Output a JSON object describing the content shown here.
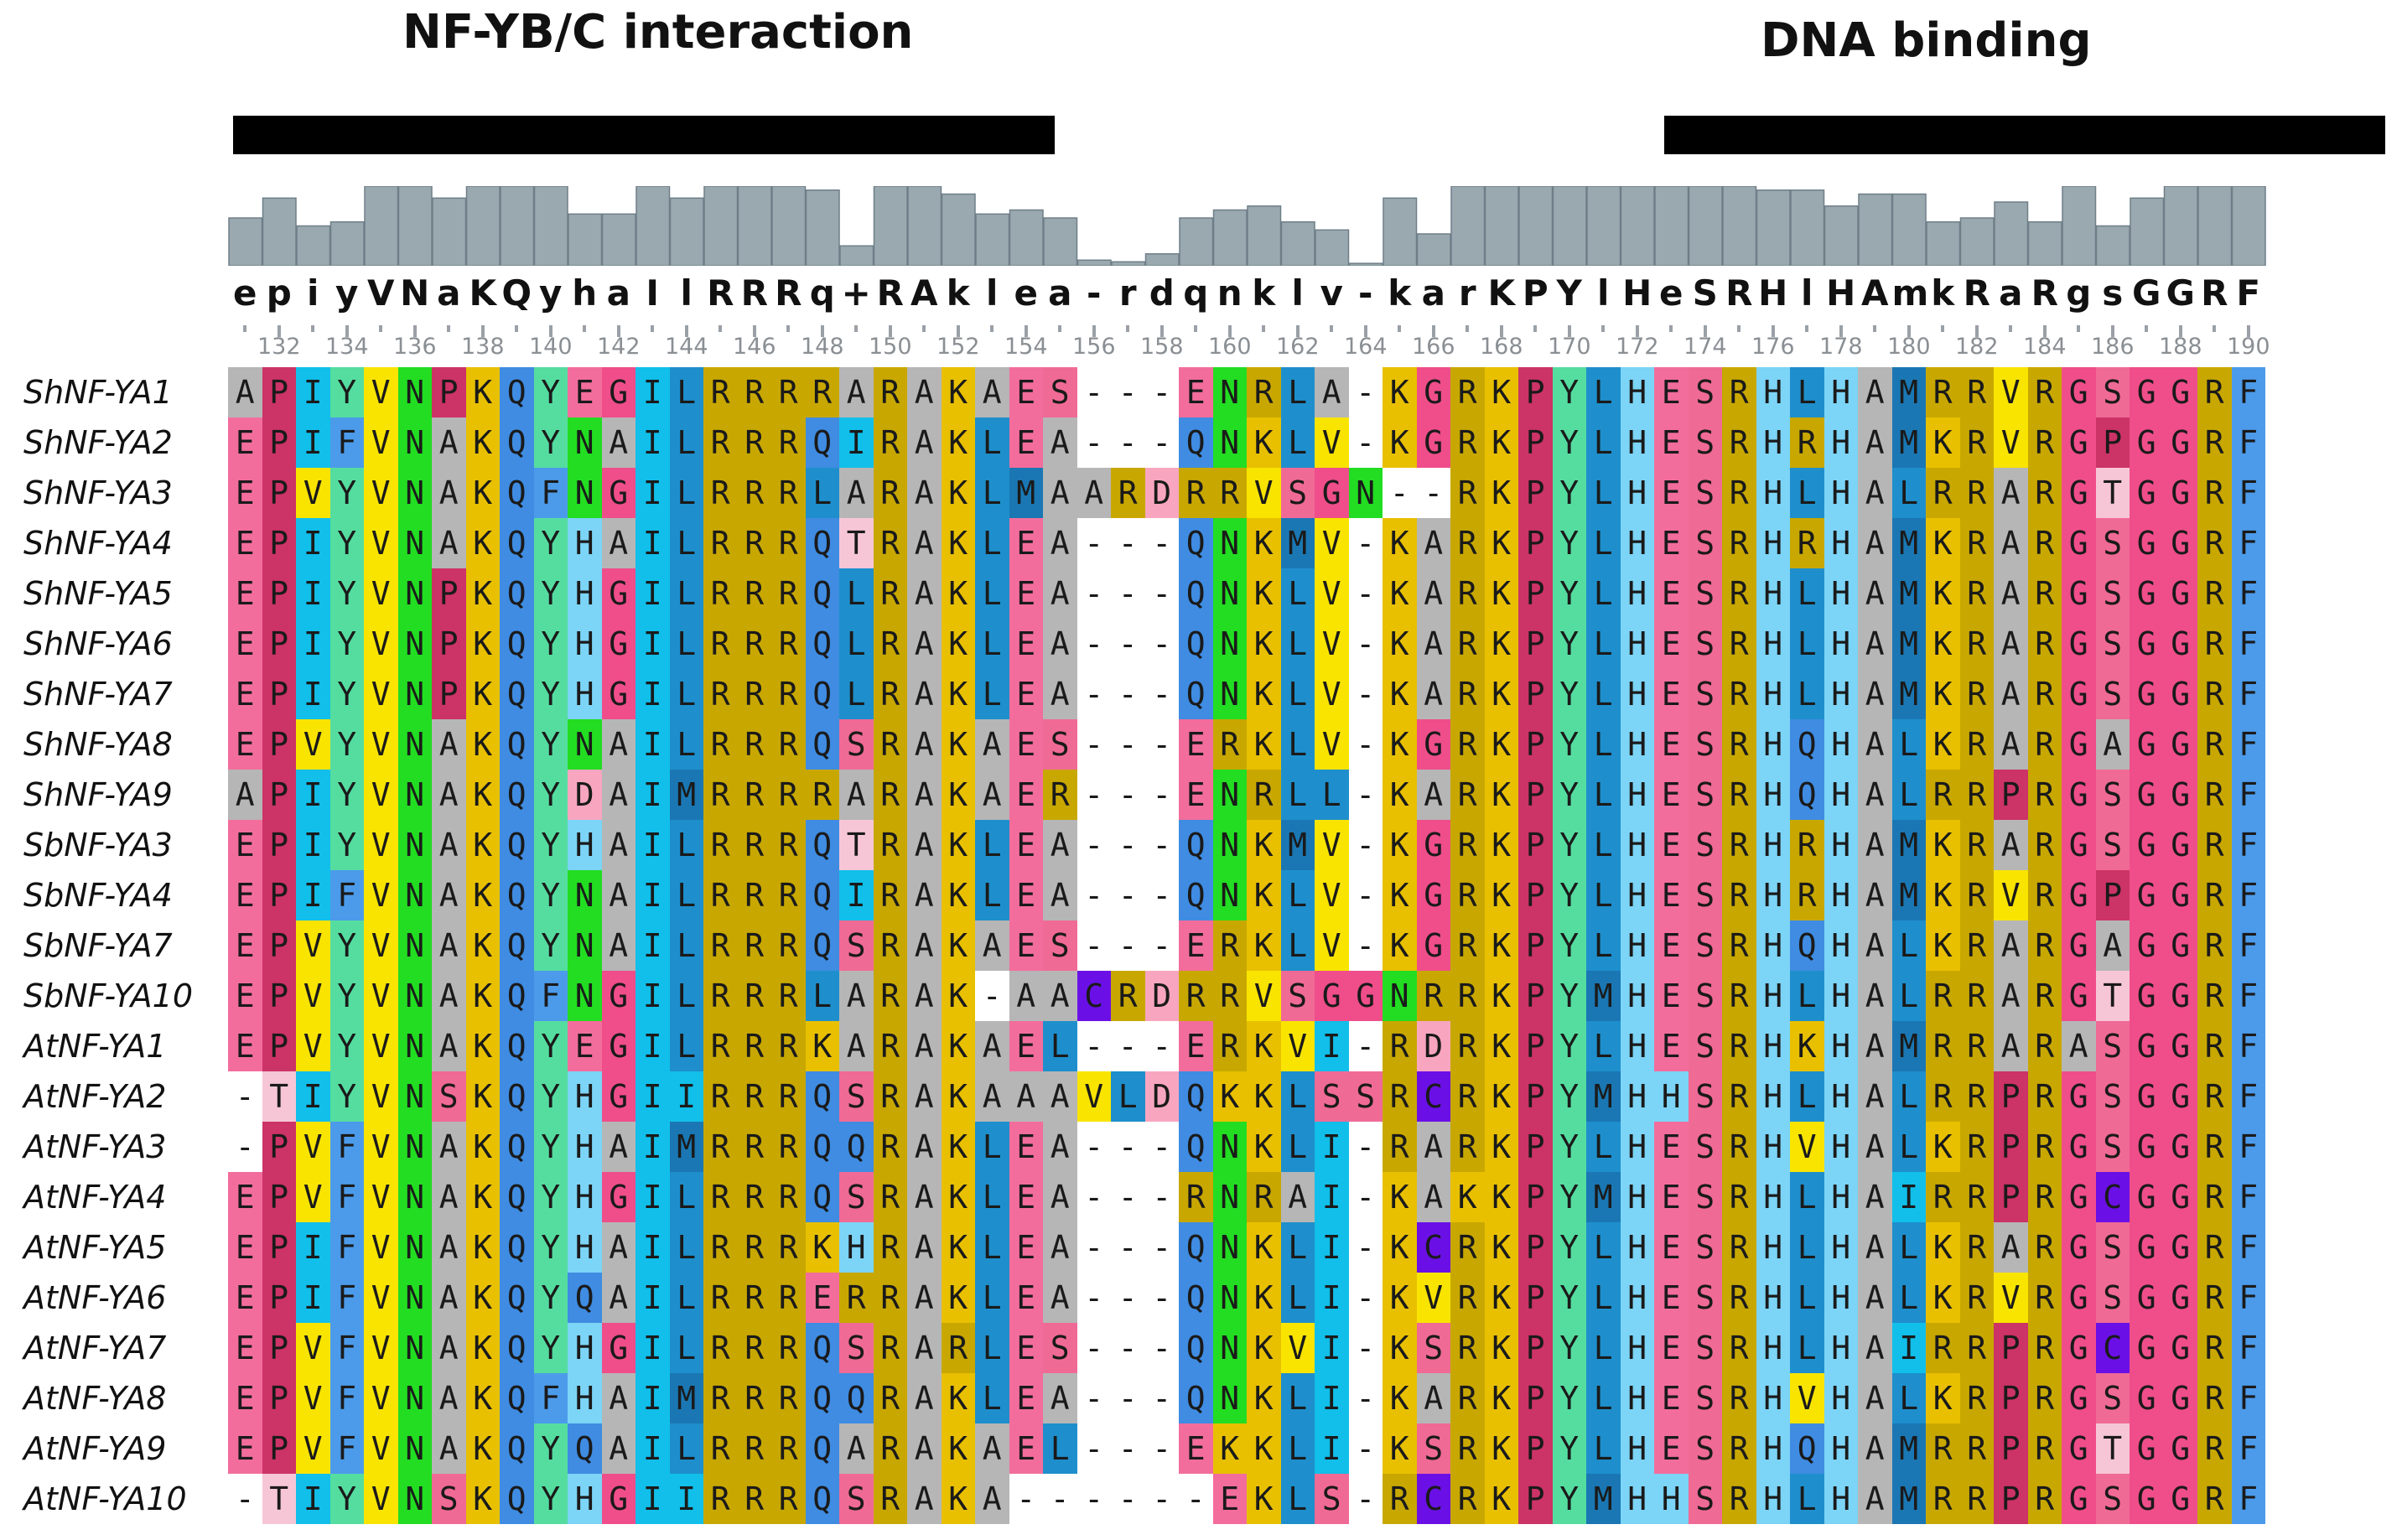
{
  "domains": {
    "nfy_label": "NF-YB/C interaction",
    "dna_label": "DNA binding"
  },
  "consensus": "epiyVNaKQyhaIlRRRq+RAklea-rdqnklv-karKPYlHeSRHlHAmkRaRgsGGRF",
  "conservation_levels": [
    0.6,
    0.85,
    0.5,
    0.55,
    1.0,
    1.0,
    0.85,
    1.0,
    1.0,
    1.0,
    0.65,
    0.65,
    1.0,
    0.85,
    1.0,
    1.0,
    1.0,
    0.95,
    0.25,
    1.0,
    1.0,
    0.9,
    0.65,
    0.7,
    0.6,
    0.07,
    0.05,
    0.15,
    0.6,
    0.7,
    0.75,
    0.55,
    0.45,
    0.03,
    0.85,
    0.4,
    1.0,
    1.0,
    1.0,
    1.0,
    1.0,
    1.0,
    1.0,
    1.0,
    1.0,
    0.95,
    0.95,
    0.75,
    0.9,
    0.9,
    0.55,
    0.6,
    0.8,
    0.55,
    1.0,
    0.5,
    0.85,
    1.0,
    1.0,
    1.0
  ],
  "ruler": {
    "labels": [
      "132",
      "134",
      "136",
      "138",
      "140",
      "142",
      "144",
      "146",
      "148",
      "150",
      "152",
      "154",
      "156",
      "158",
      "160",
      "162",
      "164",
      "166",
      "168",
      "170",
      "172",
      "174",
      "176",
      "178",
      "180",
      "182",
      "184",
      "186",
      "188",
      "190"
    ]
  },
  "sequences": [
    {
      "name": "ShNF-YA1",
      "seq": "APIYVNPKQYEGILRRRRARAKAES---ENRLA-KGRKPYLHESRHLHAMRRVRGSGGRF"
    },
    {
      "name": "ShNF-YA2",
      "seq": "EPIFVNAKQYNAILRRRQIRAKLEA---QNKLV-KGRKPYLHESRHRHAMKRVRGPGGRF"
    },
    {
      "name": "ShNF-YA3",
      "seq": "EPVYVNAKQFNGILRRRLARAKLMAARDRRVSGN--RKPYLHESRHLHALRRARGTGGRF"
    },
    {
      "name": "ShNF-YA4",
      "seq": "EPIYVNAKQYHAILRRRQTRAKLEA---QNKMV-KARKPYLHESRHRHAMKRARGSGGRF"
    },
    {
      "name": "ShNF-YA5",
      "seq": "EPIYVNPKQYHGILRRRQLRAKLEA---QNKLV-KARKPYLHESRHLHAMKRARGSGGRF"
    },
    {
      "name": "ShNF-YA6",
      "seq": "EPIYVNPKQYHGILRRRQLRAKLEA---QNKLV-KARKPYLHESRHLHAMKRARGSGGRF"
    },
    {
      "name": "ShNF-YA7",
      "seq": "EPIYVNPKQYHGILRRRQLRAKLEA---QNKLV-KARKPYLHESRHLHAMKRARGSGGRF"
    },
    {
      "name": "ShNF-YA8",
      "seq": "EPVYVNAKQYNAILRRRQSRAKAES---ERKLV-KGRKPYLHESRHQHALKRARGAGGRF"
    },
    {
      "name": "ShNF-YA9",
      "seq": "APIYVNAKQYDAIMRRRRARAKAER---ENRLL-KARKPYLHESRHQHALRRPRGSGGRF"
    },
    {
      "name": "SbNF-YA3",
      "seq": "EPIYVNAKQYHAILRRRQTRAKLEA---QNKMV-KGRKPYLHESRHRHAMKRARGSGGRF"
    },
    {
      "name": "SbNF-YA4",
      "seq": "EPIFVNAKQYNAILRRRQIRAKLEA---QNKLV-KGRKPYLHESRHRHAMKRVRGPGGRF"
    },
    {
      "name": "SbNF-YA7",
      "seq": "EPVYVNAKQYNAILRRRQSRAKAES---ERKLV-KGRKPYLHESRHQHALKRARGAGGRF"
    },
    {
      "name": "SbNF-YA10",
      "seq": "EPVYVNAKQFNGILRRRLARAK-AACRDRRVSGGNRRKPYMHESRHLHALRRARGTGGRF"
    },
    {
      "name": "AtNF-YA1",
      "seq": "EPVYVNAKQYEGILRRRKARAKAEL---ERKVI-RDRKPYLHESRHKHAMRRARASGGRF"
    },
    {
      "name": "AtNF-YA2",
      "seq": "-TIYVNSKQYHGIIRRRQSRAKAAAVLDQKKLSSRCRKPYMHHSRHLHALRRPRGSGGRF"
    },
    {
      "name": "AtNF-YA3",
      "seq": "-PVFVNAKQYHAIMRRRQQRAKLEA---QNKLI-RARKPYLHESRHVHALKRPRGSGGRF"
    },
    {
      "name": "AtNF-YA4",
      "seq": "EPVFVNAKQYHGILRRRQSRAKLEA---RNRAI-KAKKPYMHESRHLHAIRRPRGCGGRF"
    },
    {
      "name": "AtNF-YA5",
      "seq": "EPIFVNAKQYHAILRRRKHRAKLEA---QNKLI-KCRKPYLHESRHLHALKRARGSGGRF"
    },
    {
      "name": "AtNF-YA6",
      "seq": "EPIFVNAKQYQAILRRRERRAKLEA---QNKLI-KVRKPYLHESRHLHALKRVRGSGGRF"
    },
    {
      "name": "AtNF-YA7",
      "seq": "EPVFVNAKQYHGILRRRQSRARLES---QNKVI-KSRKPYLHESRHLHAIRRPRGCGGRF"
    },
    {
      "name": "AtNF-YA8",
      "seq": "EPVFVNAKQFHAIMRRRQQRAKLEA---QNKLI-KARKPYLHESRHVHALKRPRGSGGRF"
    },
    {
      "name": "AtNF-YA9",
      "seq": "EPVFVNAKQYQAILRRRQARAKAEL---EKKLI-KSRKPYLHESRHQHAMRRPRGTGGRF"
    },
    {
      "name": "AtNF-YA10",
      "seq": "-TIYVNSKQYHGIIRRRQSRAKA------EKLS-RCRKPYMHHSRHLHAMRRPRGSGGRF"
    }
  ],
  "palette": {
    "A": "#b6b6b6",
    "E": "#f36d9c",
    "D": "#f8a6c0",
    "P": "#cc3366",
    "G": "#ef4e8a",
    "I": "#11bfea",
    "L": "#1e8fcc",
    "M": "#1a77b3",
    "V": "#f9e400",
    "F": "#4c9bea",
    "Y": "#55dda0",
    "W": "#44cc44",
    "N": "#22dd22",
    "Q": "#3f8ce2",
    "K": "#e8c000",
    "R": "#c8a800",
    "H": "#7cd4f6",
    "S": "#f06a96",
    "T": "#f6c6d6",
    "C": "#6a10e6",
    "-": "#ffffff",
    "gap": "#ffffff",
    "bar": "#9aa8b0",
    "bar_edge": "#6f7f88"
  }
}
